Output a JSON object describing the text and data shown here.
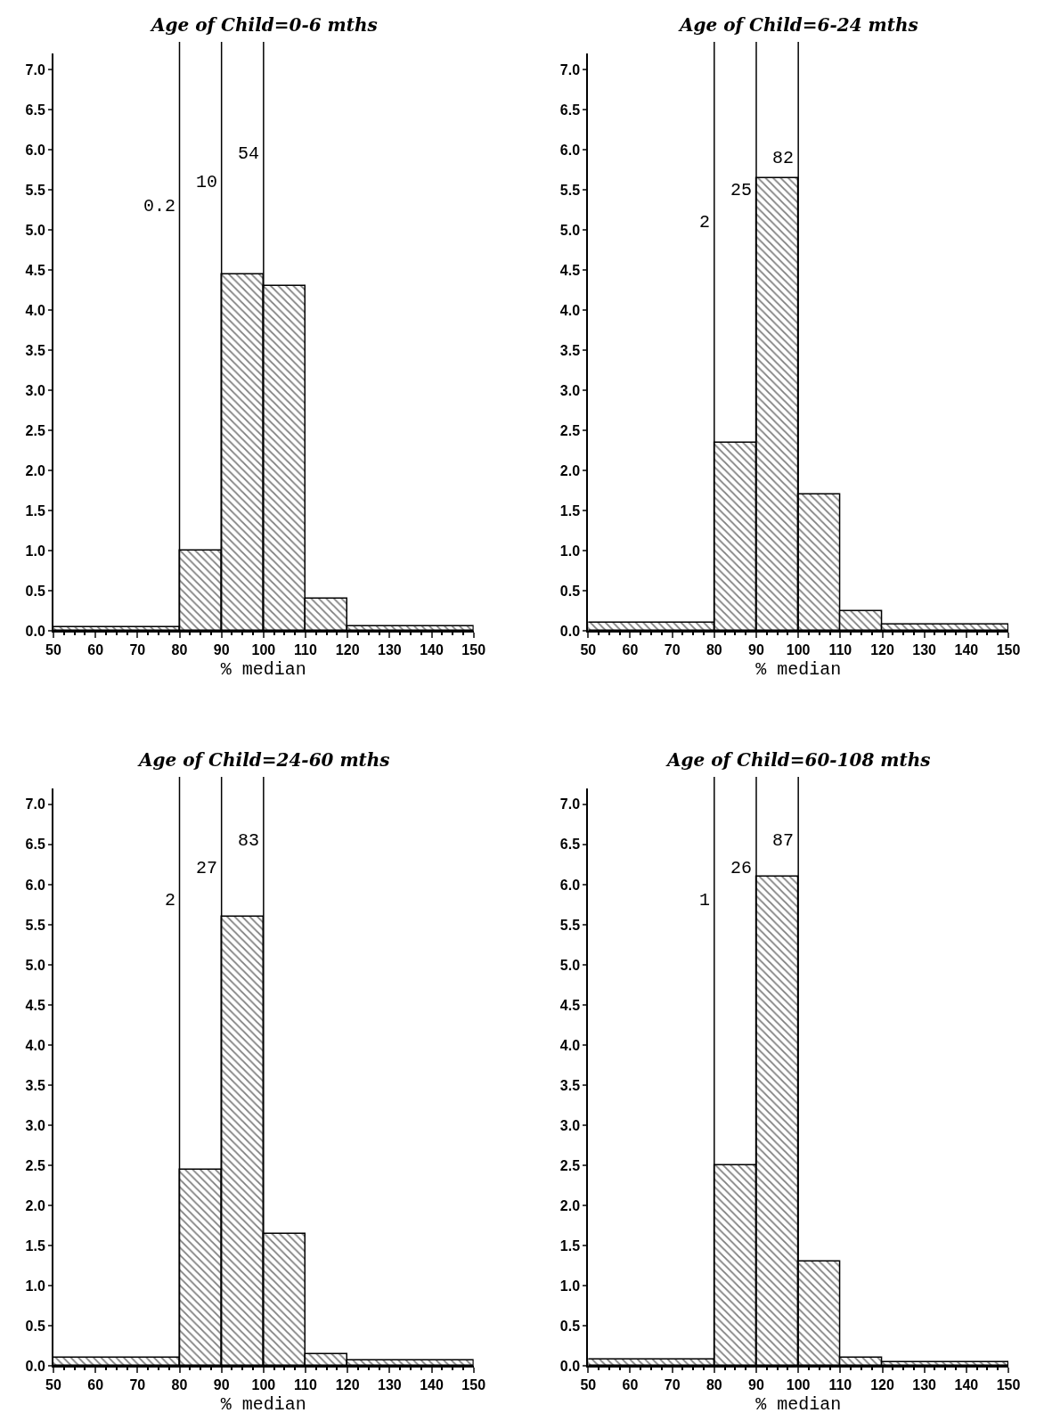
{
  "chart_data": [
    {
      "type": "histogram",
      "title": "Age of Child=0-6 mths",
      "xlabel": "% median",
      "bins": [
        50,
        80,
        90,
        100,
        110,
        120,
        150
      ],
      "values": [
        0.05,
        1.0,
        4.45,
        4.3,
        0.4,
        0.06
      ],
      "color": "#000000",
      "xlim": [
        50,
        150
      ],
      "xticks": [
        50,
        60,
        70,
        80,
        90,
        100,
        110,
        120,
        130,
        140,
        150
      ],
      "ylim": [
        0,
        7.2
      ],
      "yticks": [
        {
          "value": 0,
          "label": "0.0"
        },
        {
          "value": 0.5,
          "label": "0.5"
        },
        {
          "value": 1,
          "label": "1.0"
        },
        {
          "value": 1.5,
          "label": "1.5"
        },
        {
          "value": 2,
          "label": "2.0"
        },
        {
          "value": 2.5,
          "label": "2.5"
        },
        {
          "value": 3,
          "label": "3.0"
        },
        {
          "value": 3.5,
          "label": "3.5"
        },
        {
          "value": 4,
          "label": "4.0"
        },
        {
          "value": 4.5,
          "label": "4.5"
        },
        {
          "value": 5,
          "label": "5.0"
        },
        {
          "value": 5.5,
          "label": "5.5"
        },
        {
          "value": 6,
          "label": "6.0"
        },
        {
          "value": 6.5,
          "label": "6.5"
        },
        {
          "value": 7,
          "label": "7.0"
        }
      ],
      "ref_lines": [
        {
          "axis": "x",
          "value": 80,
          "color": "#000000"
        },
        {
          "axis": "x",
          "value": 90,
          "color": "#000000"
        },
        {
          "axis": "x",
          "value": 100,
          "color": "#000000"
        }
      ],
      "annotations": [
        {
          "text": "0.2",
          "x": 80,
          "y": 5.3
        },
        {
          "text": "10",
          "x": 90,
          "y": 5.6
        },
        {
          "text": "54",
          "x": 100,
          "y": 5.95
        }
      ]
    },
    {
      "type": "histogram",
      "title": "Age of Child=6-24 mths",
      "xlabel": "% median",
      "bins": [
        50,
        80,
        90,
        100,
        110,
        120,
        150
      ],
      "values": [
        0.1,
        2.35,
        5.65,
        1.7,
        0.25,
        0.08
      ],
      "color": "#000000",
      "xlim": [
        50,
        150
      ],
      "xticks": [
        50,
        60,
        70,
        80,
        90,
        100,
        110,
        120,
        130,
        140,
        150
      ],
      "ylim": [
        0,
        7.2
      ],
      "yticks": [
        {
          "value": 0,
          "label": "0.0"
        },
        {
          "value": 0.5,
          "label": "0.5"
        },
        {
          "value": 1,
          "label": "1.0"
        },
        {
          "value": 1.5,
          "label": "1.5"
        },
        {
          "value": 2,
          "label": "2.0"
        },
        {
          "value": 2.5,
          "label": "2.5"
        },
        {
          "value": 3,
          "label": "3.0"
        },
        {
          "value": 3.5,
          "label": "3.5"
        },
        {
          "value": 4,
          "label": "4.0"
        },
        {
          "value": 4.5,
          "label": "4.5"
        },
        {
          "value": 5,
          "label": "5.0"
        },
        {
          "value": 5.5,
          "label": "5.5"
        },
        {
          "value": 6,
          "label": "6.0"
        },
        {
          "value": 6.5,
          "label": "6.5"
        },
        {
          "value": 7,
          "label": "7.0"
        }
      ],
      "ref_lines": [
        {
          "axis": "x",
          "value": 80,
          "color": "#000000"
        },
        {
          "axis": "x",
          "value": 90,
          "color": "#000000"
        },
        {
          "axis": "x",
          "value": 100,
          "color": "#000000"
        }
      ],
      "annotations": [
        {
          "text": "2",
          "x": 80,
          "y": 5.1
        },
        {
          "text": "25",
          "x": 90,
          "y": 5.5
        },
        {
          "text": "82",
          "x": 100,
          "y": 5.9
        }
      ]
    },
    {
      "type": "histogram",
      "title": "Age of Child=24-60 mths",
      "xlabel": "% median",
      "bins": [
        50,
        80,
        90,
        100,
        110,
        120,
        150
      ],
      "values": [
        0.1,
        2.45,
        5.6,
        1.65,
        0.15,
        0.07
      ],
      "color": "#000000",
      "xlim": [
        50,
        150
      ],
      "xticks": [
        50,
        60,
        70,
        80,
        90,
        100,
        110,
        120,
        130,
        140,
        150
      ],
      "ylim": [
        0,
        7.2
      ],
      "yticks": [
        {
          "value": 0,
          "label": "0.0"
        },
        {
          "value": 0.5,
          "label": "0.5"
        },
        {
          "value": 1,
          "label": "1.0"
        },
        {
          "value": 1.5,
          "label": "1.5"
        },
        {
          "value": 2,
          "label": "2.0"
        },
        {
          "value": 2.5,
          "label": "2.5"
        },
        {
          "value": 3,
          "label": "3.0"
        },
        {
          "value": 3.5,
          "label": "3.5"
        },
        {
          "value": 4,
          "label": "4.0"
        },
        {
          "value": 4.5,
          "label": "4.5"
        },
        {
          "value": 5,
          "label": "5.0"
        },
        {
          "value": 5.5,
          "label": "5.5"
        },
        {
          "value": 6,
          "label": "6.0"
        },
        {
          "value": 6.5,
          "label": "6.5"
        },
        {
          "value": 7,
          "label": "7.0"
        }
      ],
      "ref_lines": [
        {
          "axis": "x",
          "value": 80,
          "color": "#000000"
        },
        {
          "axis": "x",
          "value": 90,
          "color": "#000000"
        },
        {
          "axis": "x",
          "value": 100,
          "color": "#000000"
        }
      ],
      "annotations": [
        {
          "text": "2",
          "x": 80,
          "y": 5.8
        },
        {
          "text": "27",
          "x": 90,
          "y": 6.2
        },
        {
          "text": "83",
          "x": 100,
          "y": 6.55
        }
      ]
    },
    {
      "type": "histogram",
      "title": "Age of Child=60-108 mths",
      "xlabel": "% median",
      "bins": [
        50,
        80,
        90,
        100,
        110,
        120,
        150
      ],
      "values": [
        0.08,
        2.5,
        6.1,
        1.3,
        0.1,
        0.05
      ],
      "color": "#000000",
      "xlim": [
        50,
        150
      ],
      "xticks": [
        50,
        60,
        70,
        80,
        90,
        100,
        110,
        120,
        130,
        140,
        150
      ],
      "ylim": [
        0,
        7.2
      ],
      "yticks": [
        {
          "value": 0,
          "label": "0.0"
        },
        {
          "value": 0.5,
          "label": "0.5"
        },
        {
          "value": 1,
          "label": "1.0"
        },
        {
          "value": 1.5,
          "label": "1.5"
        },
        {
          "value": 2,
          "label": "2.0"
        },
        {
          "value": 2.5,
          "label": "2.5"
        },
        {
          "value": 3,
          "label": "3.0"
        },
        {
          "value": 3.5,
          "label": "3.5"
        },
        {
          "value": 4,
          "label": "4.0"
        },
        {
          "value": 4.5,
          "label": "4.5"
        },
        {
          "value": 5,
          "label": "5.0"
        },
        {
          "value": 5.5,
          "label": "5.5"
        },
        {
          "value": 6,
          "label": "6.0"
        },
        {
          "value": 6.5,
          "label": "6.5"
        },
        {
          "value": 7,
          "label": "7.0"
        }
      ],
      "ref_lines": [
        {
          "axis": "x",
          "value": 80,
          "color": "#000000"
        },
        {
          "axis": "x",
          "value": 90,
          "color": "#000000"
        },
        {
          "axis": "x",
          "value": 100,
          "color": "#000000"
        }
      ],
      "annotations": [
        {
          "text": "1",
          "x": 80,
          "y": 5.8
        },
        {
          "text": "26",
          "x": 90,
          "y": 6.2
        },
        {
          "text": "87",
          "x": 100,
          "y": 6.55
        }
      ]
    }
  ]
}
